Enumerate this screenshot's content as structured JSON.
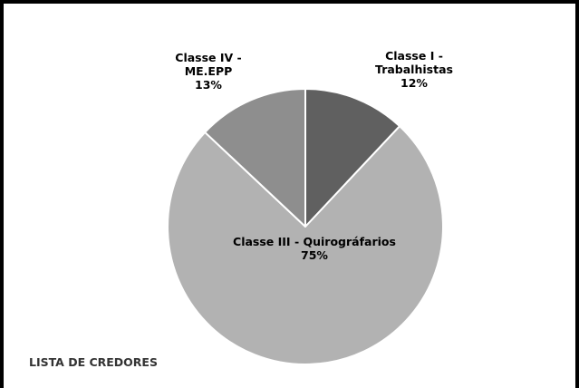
{
  "chart_data": {
    "type": "pie",
    "title": "LISTA DE CREDORES",
    "categories": [
      "Classe I - Trabalhistas",
      "Classe III - Quirográfarios",
      "Classe IV - ME.EPP"
    ],
    "values": [
      12,
      75,
      13
    ],
    "value_labels": [
      "12%",
      "75%",
      "13%"
    ],
    "colors": [
      "#606060",
      "#b2b2b2",
      "#8e8e8e"
    ]
  }
}
